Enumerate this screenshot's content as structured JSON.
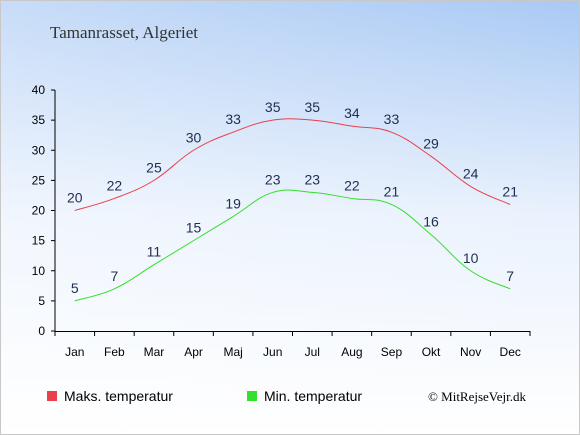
{
  "chart_data": {
    "type": "line",
    "title": "Tamanrasset, Algeriet",
    "categories": [
      "Jan",
      "Feb",
      "Mar",
      "Apr",
      "Maj",
      "Jun",
      "Jul",
      "Aug",
      "Sep",
      "Okt",
      "Nov",
      "Dec"
    ],
    "series": [
      {
        "name": "Maks. temperatur",
        "color": "#e8414a",
        "values": [
          20,
          22,
          25,
          30,
          33,
          35,
          35,
          34,
          33,
          29,
          24,
          21
        ]
      },
      {
        "name": "Min. temperatur",
        "color": "#33e02b",
        "values": [
          5,
          7,
          11,
          15,
          19,
          23,
          23,
          22,
          21,
          16,
          10,
          7
        ]
      }
    ],
    "ylim": [
      0,
      40
    ],
    "yticks": [
      0,
      5,
      10,
      15,
      20,
      25,
      30,
      35,
      40
    ],
    "grid": false,
    "legend_position": "bottom-left",
    "credit": "© MitRejseVejr.dk"
  }
}
